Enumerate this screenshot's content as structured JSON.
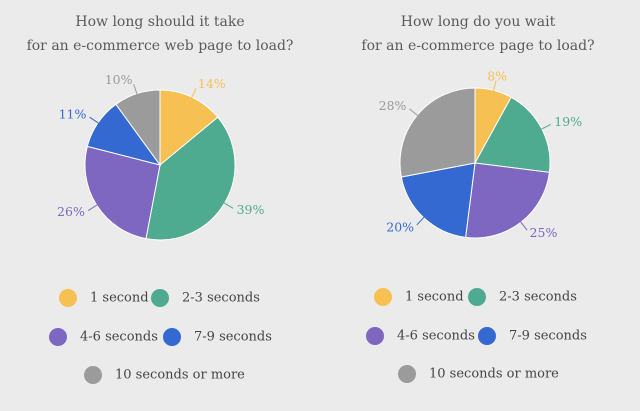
{
  "chart_data": [
    {
      "type": "pie",
      "title": [
        "How long should it take",
        "for an e-commerce web page to load?"
      ],
      "categories": [
        "1 second",
        "2-3 seconds",
        "4-6 seconds",
        "7-9 seconds",
        "10 seconds or more"
      ],
      "values": [
        14,
        39,
        26,
        11,
        10
      ],
      "value_labels": [
        "14%",
        "39%",
        "26%",
        "11%",
        "10%"
      ],
      "colors": [
        "#f6c052",
        "#4eab8f",
        "#7e67c1",
        "#3369d0",
        "#9b9b9b"
      ]
    },
    {
      "type": "pie",
      "title": [
        "How long do you wait",
        "for an e-commerce page to load?"
      ],
      "categories": [
        "1 second",
        "2-3 seconds",
        "4-6 seconds",
        "7-9 seconds",
        "10 seconds or more"
      ],
      "values": [
        8,
        19,
        25,
        20,
        28
      ],
      "value_labels": [
        "8%",
        "19%",
        "25%",
        "20%",
        "28%"
      ],
      "colors": [
        "#f6c052",
        "#4eab8f",
        "#7e67c1",
        "#3369d0",
        "#9b9b9b"
      ]
    }
  ]
}
